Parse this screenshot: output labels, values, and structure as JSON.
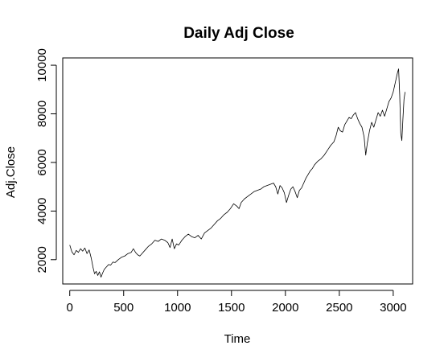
{
  "chart_data": {
    "type": "line",
    "title": "Daily Adj Close",
    "xlabel": "Time",
    "ylabel": "Adj.Close",
    "xlim": [
      -65,
      3180
    ],
    "ylim": [
      1000,
      10300
    ],
    "xticks": [
      0,
      500,
      1000,
      1500,
      2000,
      2500,
      3000
    ],
    "yticks": [
      2000,
      4000,
      6000,
      8000,
      10000
    ],
    "grid": false,
    "series": [
      {
        "color": "#000000",
        "points": [
          [
            0,
            2600
          ],
          [
            20,
            2320
          ],
          [
            40,
            2200
          ],
          [
            60,
            2380
          ],
          [
            80,
            2300
          ],
          [
            100,
            2450
          ],
          [
            120,
            2350
          ],
          [
            140,
            2480
          ],
          [
            160,
            2250
          ],
          [
            180,
            2400
          ],
          [
            200,
            2050
          ],
          [
            215,
            1700
          ],
          [
            230,
            1420
          ],
          [
            245,
            1520
          ],
          [
            260,
            1350
          ],
          [
            275,
            1500
          ],
          [
            290,
            1280
          ],
          [
            305,
            1450
          ],
          [
            320,
            1600
          ],
          [
            340,
            1700
          ],
          [
            360,
            1800
          ],
          [
            380,
            1780
          ],
          [
            400,
            1900
          ],
          [
            420,
            1880
          ],
          [
            450,
            2000
          ],
          [
            480,
            2100
          ],
          [
            510,
            2150
          ],
          [
            540,
            2250
          ],
          [
            570,
            2300
          ],
          [
            590,
            2450
          ],
          [
            610,
            2300
          ],
          [
            630,
            2200
          ],
          [
            650,
            2150
          ],
          [
            670,
            2250
          ],
          [
            700,
            2400
          ],
          [
            730,
            2550
          ],
          [
            760,
            2650
          ],
          [
            790,
            2800
          ],
          [
            820,
            2750
          ],
          [
            850,
            2850
          ],
          [
            880,
            2800
          ],
          [
            910,
            2700
          ],
          [
            930,
            2500
          ],
          [
            950,
            2850
          ],
          [
            970,
            2450
          ],
          [
            990,
            2650
          ],
          [
            1010,
            2600
          ],
          [
            1040,
            2800
          ],
          [
            1070,
            2950
          ],
          [
            1100,
            3050
          ],
          [
            1130,
            2950
          ],
          [
            1160,
            2900
          ],
          [
            1190,
            3000
          ],
          [
            1220,
            2850
          ],
          [
            1250,
            3100
          ],
          [
            1280,
            3200
          ],
          [
            1310,
            3300
          ],
          [
            1340,
            3450
          ],
          [
            1370,
            3600
          ],
          [
            1400,
            3700
          ],
          [
            1430,
            3850
          ],
          [
            1460,
            3950
          ],
          [
            1490,
            4100
          ],
          [
            1520,
            4300
          ],
          [
            1550,
            4200
          ],
          [
            1570,
            4100
          ],
          [
            1590,
            4350
          ],
          [
            1620,
            4500
          ],
          [
            1650,
            4600
          ],
          [
            1680,
            4700
          ],
          [
            1710,
            4800
          ],
          [
            1740,
            4850
          ],
          [
            1770,
            4900
          ],
          [
            1800,
            5000
          ],
          [
            1830,
            5050
          ],
          [
            1860,
            5100
          ],
          [
            1890,
            5150
          ],
          [
            1910,
            5000
          ],
          [
            1930,
            4700
          ],
          [
            1950,
            5050
          ],
          [
            1970,
            4950
          ],
          [
            1990,
            4750
          ],
          [
            2010,
            4350
          ],
          [
            2030,
            4650
          ],
          [
            2050,
            4900
          ],
          [
            2070,
            5000
          ],
          [
            2090,
            4800
          ],
          [
            2110,
            4550
          ],
          [
            2130,
            4850
          ],
          [
            2150,
            4950
          ],
          [
            2170,
            5150
          ],
          [
            2190,
            5350
          ],
          [
            2210,
            5500
          ],
          [
            2230,
            5650
          ],
          [
            2250,
            5750
          ],
          [
            2270,
            5900
          ],
          [
            2300,
            6050
          ],
          [
            2330,
            6150
          ],
          [
            2360,
            6300
          ],
          [
            2390,
            6500
          ],
          [
            2420,
            6700
          ],
          [
            2450,
            6850
          ],
          [
            2470,
            7100
          ],
          [
            2490,
            7450
          ],
          [
            2510,
            7300
          ],
          [
            2530,
            7250
          ],
          [
            2550,
            7550
          ],
          [
            2570,
            7700
          ],
          [
            2590,
            7850
          ],
          [
            2610,
            7800
          ],
          [
            2630,
            7950
          ],
          [
            2650,
            8050
          ],
          [
            2670,
            7800
          ],
          [
            2690,
            7600
          ],
          [
            2710,
            7450
          ],
          [
            2730,
            7050
          ],
          [
            2745,
            6300
          ],
          [
            2760,
            6800
          ],
          [
            2780,
            7300
          ],
          [
            2800,
            7650
          ],
          [
            2820,
            7450
          ],
          [
            2840,
            7750
          ],
          [
            2860,
            8050
          ],
          [
            2880,
            7900
          ],
          [
            2900,
            8150
          ],
          [
            2920,
            7900
          ],
          [
            2940,
            8200
          ],
          [
            2960,
            8500
          ],
          [
            2980,
            8650
          ],
          [
            3000,
            8900
          ],
          [
            3020,
            9300
          ],
          [
            3040,
            9700
          ],
          [
            3050,
            9850
          ],
          [
            3060,
            8800
          ],
          [
            3070,
            7200
          ],
          [
            3080,
            6900
          ],
          [
            3090,
            7800
          ],
          [
            3100,
            8600
          ],
          [
            3110,
            8900
          ]
        ]
      }
    ]
  }
}
